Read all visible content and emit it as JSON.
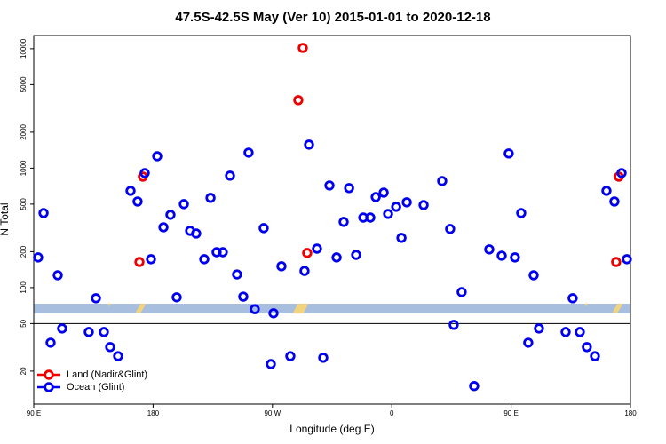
{
  "chart_data": {
    "type": "scatter",
    "title": "47.5S-42.5S May (Ver 10)   2015-01-01 to 2020-12-18",
    "x_label": "Longitude (deg E)",
    "y_label": "N Total",
    "log_y": true,
    "legend": "bottomleft",
    "hline": 50,
    "xlim": [
      90,
      540
    ],
    "xticks": [
      {
        "value": 90,
        "label": "90 E"
      },
      180,
      {
        "value": 270,
        "label": "90 W"
      },
      {
        "value": 360,
        "label": "0"
      },
      {
        "value": 450,
        "label": "90 E"
      },
      {
        "value": 540,
        "label": "180"
      }
    ],
    "ylim": [
      10.6,
      12900
    ],
    "yticks": [
      20,
      50,
      100,
      200,
      500,
      1000,
      2000,
      5000,
      10000
    ],
    "series": [
      {
        "name": "Land (Nadir&Glint)",
        "color": "#ee0000",
        "x": [
          169.7,
          172.3,
          289.5,
          292.9,
          296.2,
          529.2,
          531.2
        ],
        "values": [
          164,
          849,
          3710,
          10160,
          195,
          164,
          849
        ]
      },
      {
        "name": "Ocean (Glint)",
        "color": "#0000ee",
        "x": [
          93.3,
          97.4,
          102.7,
          108.1,
          111.4,
          131.5,
          136.9,
          142.9,
          147.6,
          153.6,
          163,
          168.3,
          173.7,
          178.4,
          183.1,
          187.8,
          193.1,
          197.8,
          203.2,
          207.9,
          212.5,
          218.6,
          223.3,
          227.9,
          232.6,
          238,
          243.3,
          248,
          252,
          256.7,
          263.4,
          270.8,
          268.8,
          276.8,
          283.5,
          294.2,
          297.6,
          303.6,
          308.3,
          313,
          318.4,
          323.7,
          327.8,
          333.1,
          338.5,
          343.8,
          347.9,
          353.9,
          357.2,
          363.3,
          367.3,
          371.3,
          384,
          398,
          404,
          406.7,
          412.7,
          422.1,
          433.5,
          442.9,
          448.2,
          452.9,
          457.6,
          462.9,
          467,
          471,
          491.1,
          496.4,
          501.8,
          507.1,
          513.2,
          521.9,
          527.9,
          533.3,
          537.3
        ],
        "values": [
          179,
          421,
          34.6,
          127,
          45.5,
          42.5,
          81.5,
          42.5,
          31.8,
          26.7,
          646,
          526,
          910,
          173,
          1259,
          320,
          407,
          83,
          500,
          299,
          284,
          173,
          564,
          198,
          198,
          865,
          129,
          84,
          1349,
          66,
          315,
          61,
          22.9,
          151,
          26.7,
          138,
          1574,
          212,
          25.9,
          716,
          179,
          355,
          681,
          188,
          386,
          386,
          573,
          624,
          414,
          475,
          261,
          518,
          491,
          780,
          310,
          48.8,
          91.8,
          15,
          209,
          185,
          1327,
          179,
          421,
          34.6,
          127,
          45.5,
          42.5,
          81.5,
          42.5,
          31.8,
          26.7,
          646,
          526,
          910,
          173
        ]
      }
    ]
  }
}
